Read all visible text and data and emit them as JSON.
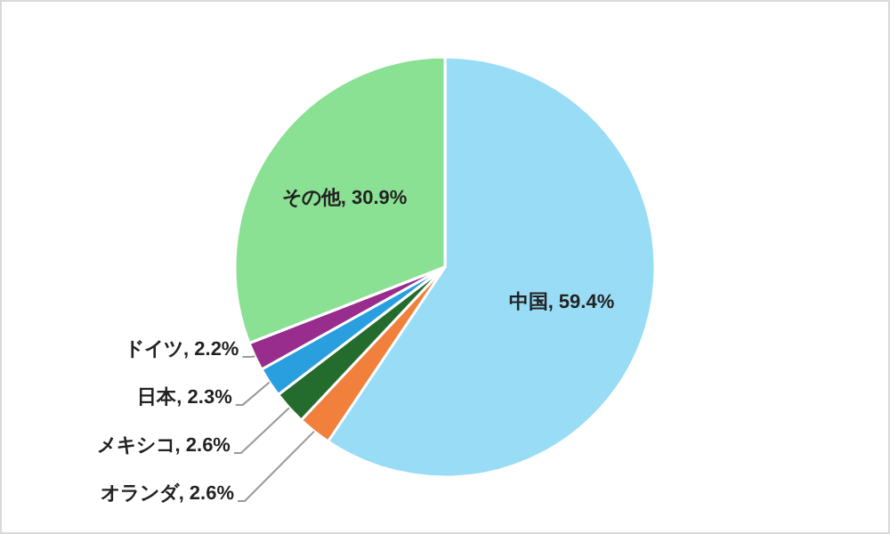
{
  "chart_data": {
    "type": "pie",
    "categories": [
      "中国",
      "オランダ",
      "メキシコ",
      "日本",
      "ドイツ",
      "その他"
    ],
    "values": [
      59.4,
      2.6,
      2.6,
      2.3,
      2.2,
      30.9
    ],
    "value_labels": [
      "59.4%",
      "2.6%",
      "2.6%",
      "2.3%",
      "2.2%",
      "30.9%"
    ],
    "colors": [
      "#99dcf6",
      "#f0803c",
      "#246b2e",
      "#2a9fe0",
      "#992d8e",
      "#8ae093"
    ]
  }
}
